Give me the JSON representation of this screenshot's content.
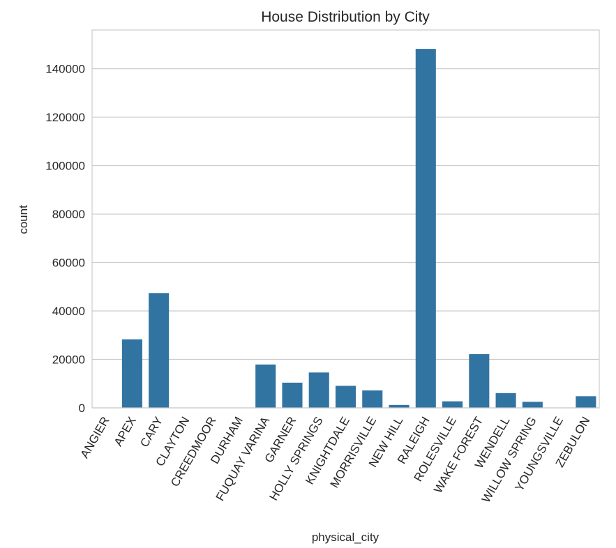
{
  "chart_data": {
    "type": "bar",
    "title": "House Distribution by City",
    "xlabel": "physical_city",
    "ylabel": "count",
    "ylim": [
      0,
      156000
    ],
    "yticks": [
      0,
      20000,
      40000,
      60000,
      80000,
      100000,
      120000,
      140000
    ],
    "grid": true,
    "bar_color": "#3274a1",
    "categories": [
      "ANGIER",
      "APEX",
      "CARY",
      "CLAYTON",
      "CREEDMOOR",
      "DURHAM",
      "FUQUAY VARINA",
      "GARNER",
      "HOLLY SPRINGS",
      "KNIGHTDALE",
      "MORRISVILLE",
      "NEW HILL",
      "RALEIGH",
      "ROLESVILLE",
      "WAKE FOREST",
      "WENDELL",
      "WILLOW SPRING",
      "YOUNGSVILLE",
      "ZEBULON"
    ],
    "values": [
      20,
      28300,
      47400,
      30,
      10,
      40,
      17900,
      10400,
      14600,
      9100,
      7200,
      1200,
      148200,
      2700,
      22200,
      6100,
      2500,
      100,
      4800
    ]
  }
}
